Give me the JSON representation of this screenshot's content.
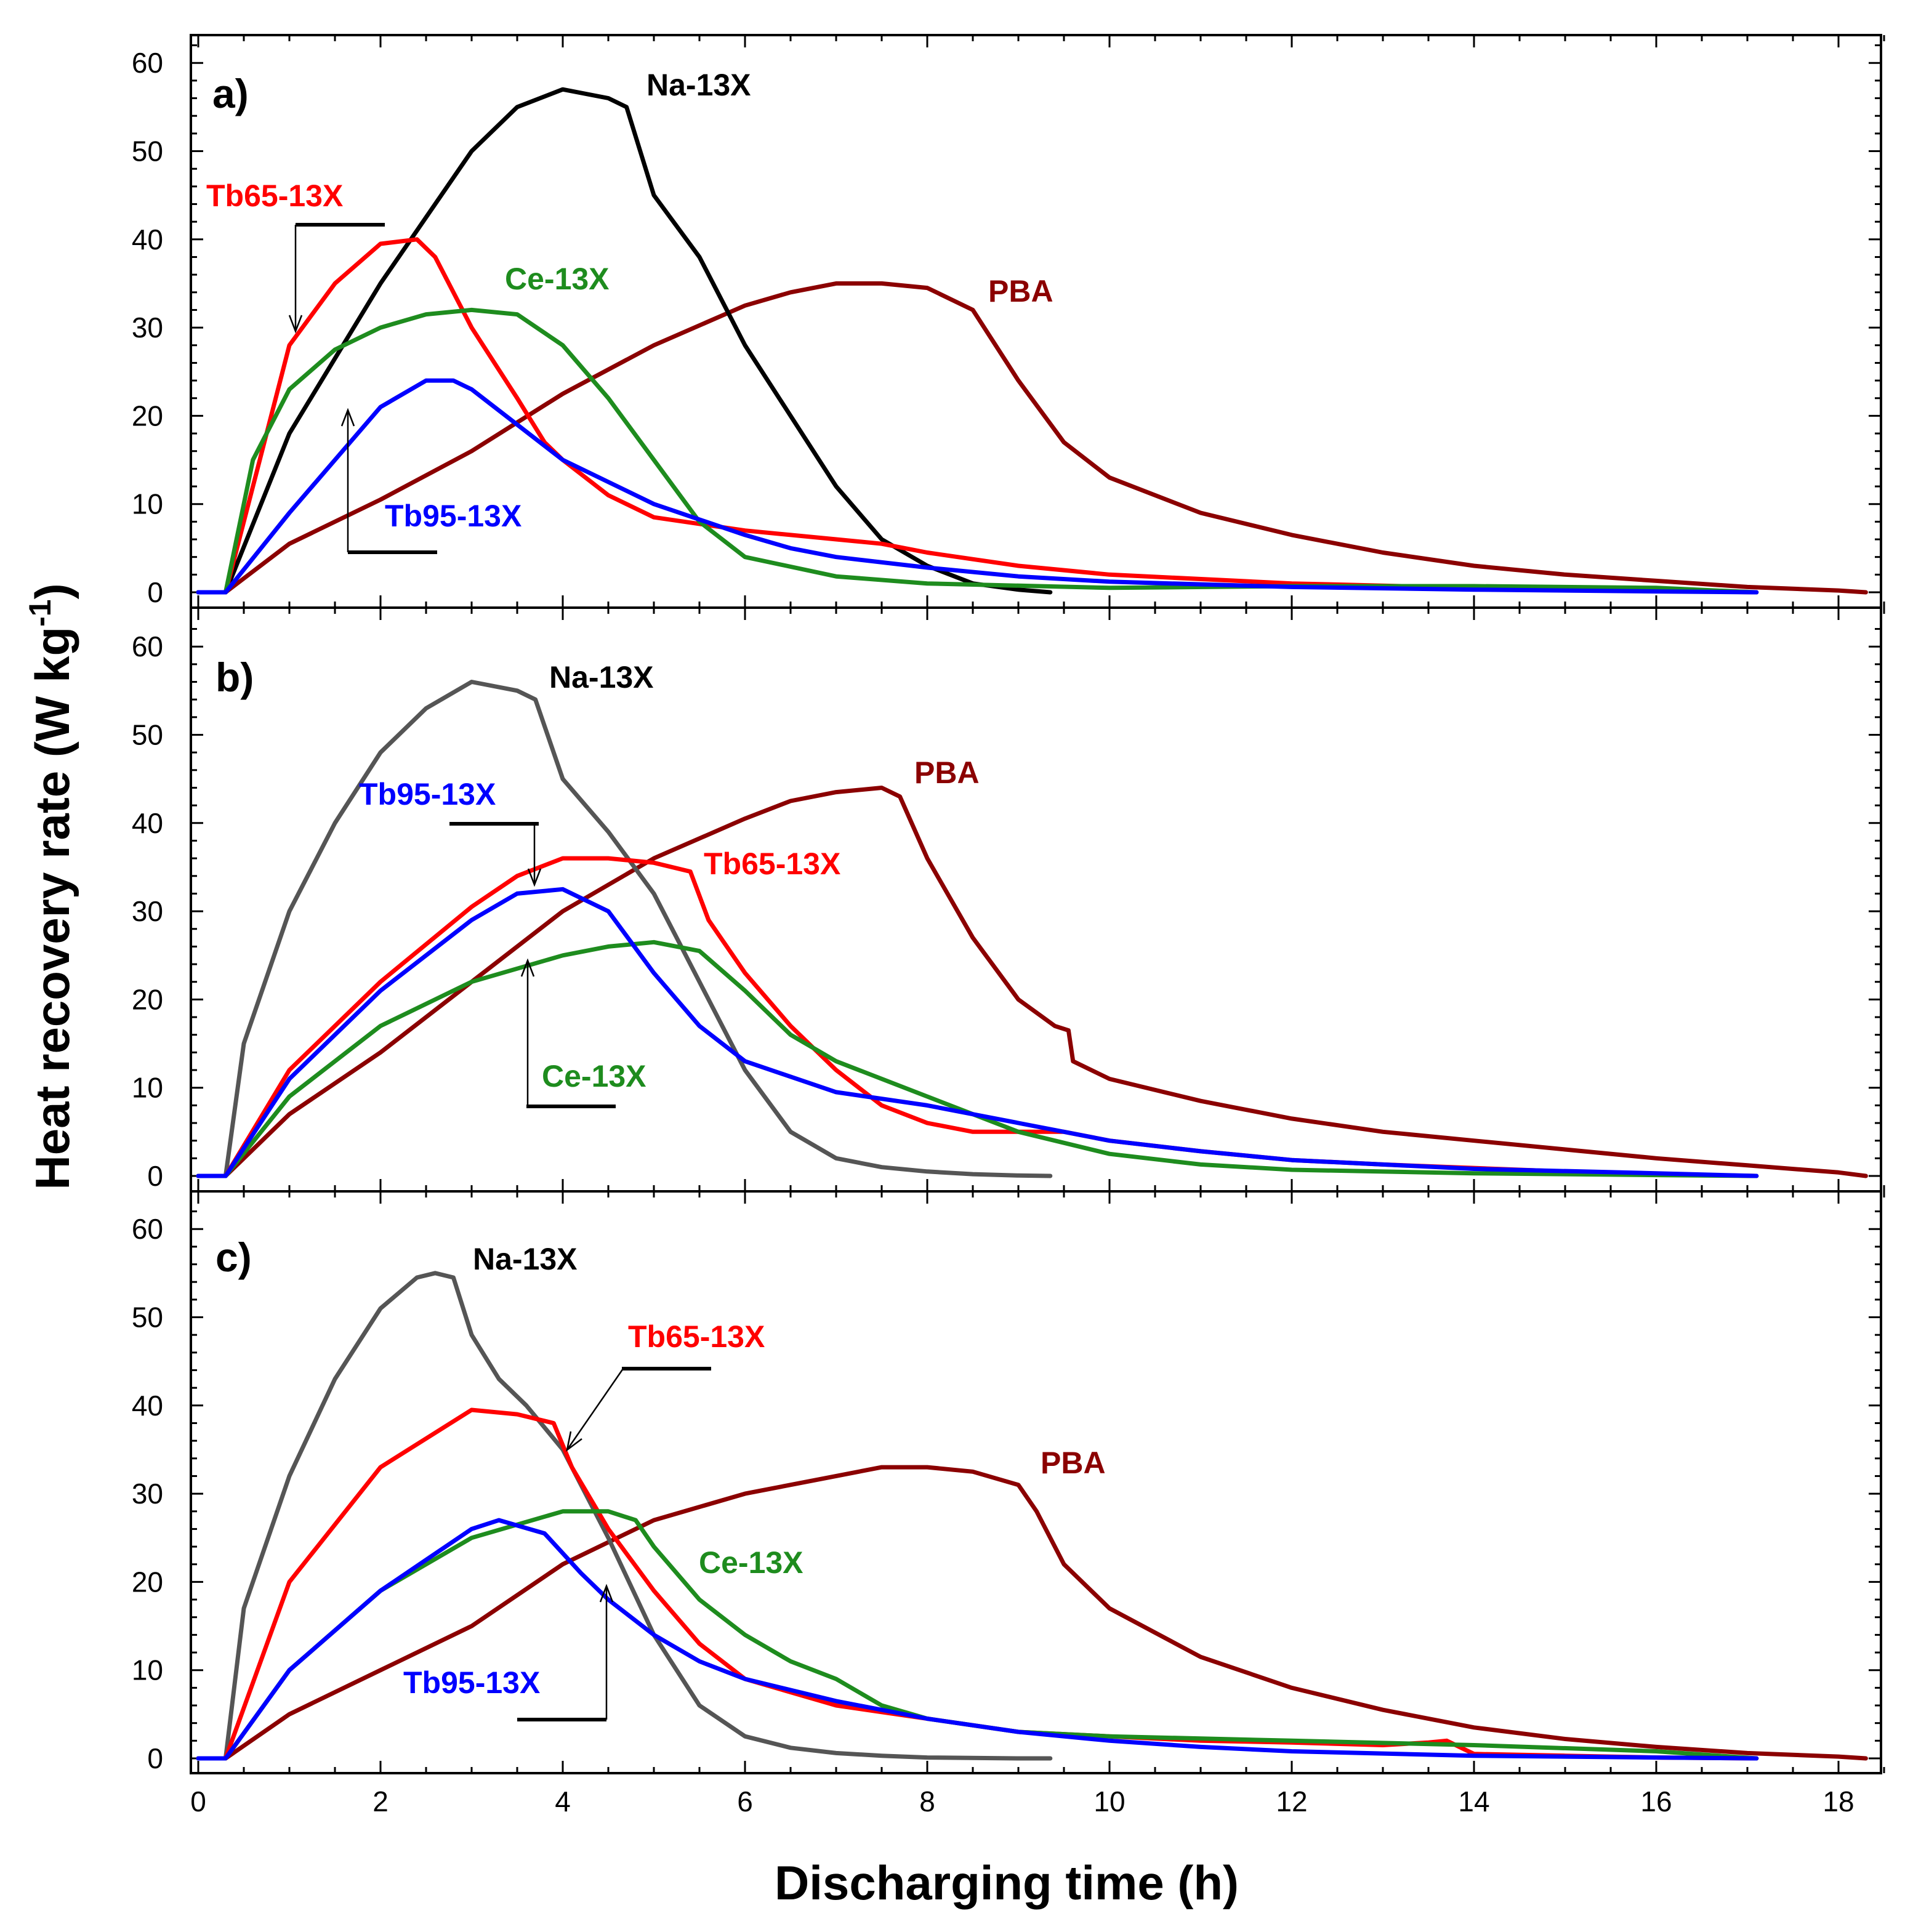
{
  "chart_data": {
    "type": "line",
    "xlabel": "Discharging time (h)",
    "ylabel": "Heat recovery rate (W kg",
    "ylabel_superscript": "-1",
    "ylabel_close": ")",
    "xlim": [
      0,
      18.5
    ],
    "ylim": [
      0,
      63
    ],
    "x_ticks": [
      0,
      2,
      4,
      6,
      8,
      10,
      12,
      14,
      16,
      18
    ],
    "y_ticks": [
      0,
      10,
      20,
      30,
      40,
      50,
      60
    ],
    "colors": {
      "Na-13X": "#000000",
      "Na-13X-gray": "#555555",
      "Tb65-13X": "#ff0000",
      "Ce-13X": "#1e8c1e",
      "Tb95-13X": "#0000ff",
      "PBA": "#8b0000"
    },
    "panels": [
      {
        "label": "a)",
        "series": [
          {
            "name": "PBA",
            "color": "#8b0000",
            "x": [
              0,
              0.2,
              0.3,
              1,
              2,
              3,
              4,
              5,
              6,
              6.5,
              7,
              7.5,
              8,
              8.5,
              9,
              9.5,
              10,
              11,
              12,
              13,
              14,
              15,
              16,
              17,
              18,
              18.3
            ],
            "y": [
              0,
              0,
              0,
              5.5,
              10.5,
              16,
              22.5,
              28,
              32.5,
              34,
              35,
              35,
              34.5,
              32,
              24,
              17,
              13,
              9,
              6.5,
              4.5,
              3,
              2,
              1.3,
              0.6,
              0.2,
              0
            ]
          },
          {
            "name": "Na-13X",
            "color": "#000000",
            "x": [
              0,
              0.2,
              0.3,
              1,
              2,
              3,
              3.5,
              4,
              4.5,
              4.7,
              5,
              5.5,
              6,
              6.5,
              7,
              7.5,
              8,
              8.5,
              9,
              9.35
            ],
            "y": [
              0,
              0,
              0,
              18,
              35,
              50,
              55,
              57,
              56,
              55,
              45,
              38,
              28,
              20,
              12,
              6,
              3,
              1,
              0.3,
              0
            ]
          },
          {
            "name": "Tb65-13X",
            "color": "#ff0000",
            "x": [
              0,
              0.2,
              0.3,
              1,
              1.5,
              2,
              2.4,
              2.6,
              3,
              3.5,
              3.8,
              4,
              4.5,
              5,
              6,
              7,
              7.5,
              8,
              9,
              10,
              12,
              14,
              16,
              17.1
            ],
            "y": [
              0,
              0,
              0,
              28,
              35,
              39.5,
              40,
              38,
              30,
              22,
              17,
              15,
              11,
              8.5,
              7,
              6,
              5.5,
              4.5,
              3,
              2,
              1,
              0.5,
              0.2,
              0
            ]
          },
          {
            "name": "Ce-13X",
            "color": "#1e8c1e",
            "x": [
              0,
              0.2,
              0.3,
              0.6,
              1,
              1.5,
              2,
              2.5,
              3,
              3.5,
              4,
              4.5,
              5,
              5.5,
              6,
              7,
              8,
              10,
              12,
              14,
              16,
              17.1
            ],
            "y": [
              0,
              0,
              0,
              15,
              23,
              27.5,
              30,
              31.5,
              32,
              31.5,
              28,
              22,
              15,
              8,
              4,
              1.8,
              1,
              0.5,
              0.7,
              0.7,
              0.5,
              0
            ]
          },
          {
            "name": "Tb95-13X",
            "color": "#0000ff",
            "x": [
              0,
              0.2,
              0.3,
              1,
              1.5,
              2,
              2.5,
              2.8,
              3,
              3.5,
              4,
              5,
              6,
              6.5,
              7,
              8,
              9,
              10,
              12,
              14,
              16,
              17.1
            ],
            "y": [
              0,
              0,
              0,
              9,
              15,
              21,
              24,
              24,
              23,
              19,
              15,
              10,
              6.5,
              5,
              4,
              2.8,
              1.8,
              1.2,
              0.6,
              0.3,
              0.1,
              0
            ]
          }
        ],
        "labels": [
          {
            "text": "Na-13X",
            "series": "Na-13X",
            "color": "#000000"
          },
          {
            "text": "Tb65-13X",
            "series": "Tb65-13X",
            "color": "#ff0000"
          },
          {
            "text": "Ce-13X",
            "series": "Ce-13X",
            "color": "#1e8c1e"
          },
          {
            "text": "PBA",
            "series": "PBA",
            "color": "#8b0000"
          },
          {
            "text": "Tb95-13X",
            "series": "Tb95-13X",
            "color": "#0000ff"
          }
        ]
      },
      {
        "label": "b)",
        "series": [
          {
            "name": "PBA",
            "color": "#8b0000",
            "x": [
              0,
              0.2,
              0.3,
              1,
              2,
              3,
              4,
              5,
              6,
              6.5,
              7,
              7.5,
              7.7,
              8,
              8.5,
              9,
              9.4,
              9.55,
              9.6,
              10,
              11,
              12,
              13,
              14,
              15,
              16,
              17,
              18,
              18.3
            ],
            "y": [
              0,
              0,
              0,
              7,
              14,
              22,
              30,
              36,
              40.5,
              42.5,
              43.5,
              44,
              43,
              36,
              27,
              20,
              17,
              16.5,
              13,
              11,
              8.5,
              6.5,
              5,
              4,
              3,
              2,
              1.2,
              0.4,
              0
            ]
          },
          {
            "name": "Na-13X",
            "color": "#555555",
            "x": [
              0,
              0.2,
              0.3,
              0.5,
              1,
              1.5,
              2,
              2.5,
              3,
              3.5,
              3.7,
              4,
              4.5,
              5,
              5.5,
              6,
              6.5,
              7,
              7.5,
              8,
              8.5,
              9,
              9.35
            ],
            "y": [
              0,
              0,
              0,
              15,
              30,
              40,
              48,
              53,
              56,
              55,
              54,
              45,
              39,
              32,
              22,
              12,
              5,
              2,
              1,
              0.5,
              0.2,
              0.05,
              0
            ]
          },
          {
            "name": "Tb65-13X",
            "color": "#ff0000",
            "x": [
              0,
              0.2,
              0.3,
              1,
              2,
              3,
              3.5,
              4,
              4.5,
              5,
              5.4,
              5.6,
              5.8,
              6,
              6.5,
              7,
              7.5,
              8,
              8.5,
              9,
              9.5,
              10,
              11,
              12,
              13,
              14,
              15,
              16,
              17.1
            ],
            "y": [
              0,
              0,
              0,
              12,
              22,
              30.5,
              34,
              36,
              36,
              35.5,
              34.5,
              29,
              26,
              23,
              17,
              12,
              8,
              6,
              5,
              5,
              5,
              4,
              2.8,
              1.8,
              1.3,
              0.9,
              0.5,
              0.2,
              0
            ]
          },
          {
            "name": "Ce-13X",
            "color": "#1e8c1e",
            "x": [
              0,
              0.2,
              0.3,
              1,
              2,
              3,
              4,
              4.5,
              5,
              5.5,
              6,
              6.5,
              7,
              8,
              9,
              10,
              11,
              12,
              14,
              16,
              17.1
            ],
            "y": [
              0,
              0,
              0,
              9,
              17,
              22,
              25,
              26,
              26.5,
              25.5,
              21,
              16,
              13,
              9,
              5,
              2.5,
              1.3,
              0.7,
              0.3,
              0.1,
              0
            ]
          },
          {
            "name": "Tb95-13X",
            "color": "#0000ff",
            "x": [
              0,
              0.2,
              0.3,
              1,
              2,
              3,
              3.5,
              4,
              4.5,
              5,
              5.5,
              6,
              7,
              8,
              9,
              10,
              11,
              12,
              14,
              16,
              17.1
            ],
            "y": [
              0,
              0,
              0,
              11,
              21,
              29,
              32,
              32.5,
              30,
              23,
              17,
              13,
              9.5,
              8,
              6,
              4,
              2.8,
              1.8,
              0.8,
              0.3,
              0
            ]
          }
        ],
        "labels": [
          {
            "text": "Na-13X",
            "series": "Na-13X",
            "color": "#000000"
          },
          {
            "text": "PBA",
            "series": "PBA",
            "color": "#8b0000"
          },
          {
            "text": "Tb95-13X",
            "series": "Tb95-13X",
            "color": "#0000ff"
          },
          {
            "text": "Tb65-13X",
            "series": "Tb65-13X",
            "color": "#ff0000"
          },
          {
            "text": "Ce-13X",
            "series": "Ce-13X",
            "color": "#1e8c1e"
          }
        ]
      },
      {
        "label": "c)",
        "series": [
          {
            "name": "PBA",
            "color": "#8b0000",
            "x": [
              0,
              0.2,
              0.3,
              1,
              2,
              3,
              4,
              5,
              6,
              7,
              7.5,
              8,
              8.5,
              9,
              9.2,
              9.5,
              10,
              11,
              12,
              13,
              14,
              15,
              16,
              17,
              18,
              18.3
            ],
            "y": [
              0,
              0,
              0,
              5,
              10,
              15,
              22,
              27,
              30,
              32,
              33,
              33,
              32.5,
              31,
              28,
              22,
              17,
              11.5,
              8,
              5.5,
              3.5,
              2.2,
              1.3,
              0.6,
              0.2,
              0
            ]
          },
          {
            "name": "Na-13X",
            "color": "#555555",
            "x": [
              0,
              0.2,
              0.3,
              0.5,
              1,
              1.5,
              2,
              2.4,
              2.6,
              2.8,
              3,
              3.3,
              3.6,
              4,
              4.5,
              5,
              5.5,
              6,
              6.5,
              7,
              7.5,
              8,
              9,
              9.35
            ],
            "y": [
              0,
              0,
              0,
              17,
              32,
              43,
              51,
              54.5,
              55,
              54.5,
              48,
              43,
              40,
              35,
              25,
              14,
              6,
              2.5,
              1.2,
              0.6,
              0.3,
              0.1,
              0,
              0
            ]
          },
          {
            "name": "Tb65-13X",
            "color": "#ff0000",
            "x": [
              0,
              0.2,
              0.3,
              1,
              2,
              3,
              3.5,
              3.9,
              4.1,
              4.5,
              5,
              5.5,
              6,
              7,
              8,
              9,
              10,
              11,
              12,
              13,
              13.5,
              13.7,
              13.9,
              14,
              15,
              16,
              17.1
            ],
            "y": [
              0,
              0,
              0,
              20,
              33,
              39.5,
              39,
              38,
              33,
              26,
              19,
              13,
              9,
              6,
              4.5,
              3,
              2.5,
              2,
              1.8,
              1.5,
              1.8,
              2,
              1,
              0.5,
              0.3,
              0.1,
              0
            ]
          },
          {
            "name": "Ce-13X",
            "color": "#1e8c1e",
            "x": [
              0,
              0.2,
              0.3,
              1,
              2,
              3,
              4,
              4.5,
              4.8,
              5,
              5.5,
              6,
              6.5,
              7,
              7.5,
              8,
              9,
              10,
              12,
              14,
              16,
              17.1
            ],
            "y": [
              0,
              0,
              0,
              10,
              19,
              25,
              28,
              28,
              27,
              24,
              18,
              14,
              11,
              9,
              6,
              4.5,
              3,
              2.5,
              2,
              1.5,
              0.8,
              0
            ]
          },
          {
            "name": "Tb95-13X",
            "color": "#0000ff",
            "x": [
              0,
              0.2,
              0.3,
              1,
              2,
              3,
              3.3,
              3.8,
              4.2,
              4.5,
              5,
              5.5,
              6,
              7,
              8,
              9,
              10,
              11,
              12,
              14,
              16,
              17.1
            ],
            "y": [
              0,
              0,
              0,
              10,
              19,
              26,
              27,
              25.5,
              21,
              18,
              14,
              11,
              9,
              6.5,
              4.5,
              3,
              2,
              1.3,
              0.8,
              0.3,
              0.1,
              0
            ]
          }
        ],
        "labels": [
          {
            "text": "Na-13X",
            "series": "Na-13X",
            "color": "#000000"
          },
          {
            "text": "Tb65-13X",
            "series": "Tb65-13X",
            "color": "#ff0000"
          },
          {
            "text": "PBA",
            "series": "PBA",
            "color": "#8b0000"
          },
          {
            "text": "Ce-13X",
            "series": "Ce-13X",
            "color": "#1e8c1e"
          },
          {
            "text": "Tb95-13X",
            "series": "Tb95-13X",
            "color": "#0000ff"
          }
        ]
      }
    ]
  }
}
